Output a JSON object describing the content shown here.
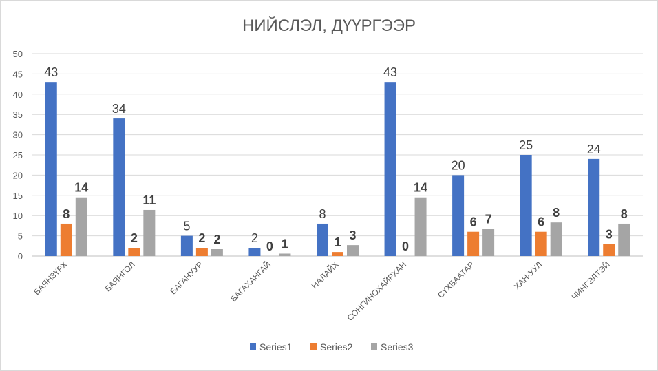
{
  "chart_data": {
    "type": "bar",
    "title": "НИЙСЛЭЛ, ДҮҮРГЭЭР",
    "xlabel": "",
    "ylabel": "",
    "ylim": [
      0,
      50
    ],
    "yticks": [
      0,
      5,
      10,
      15,
      20,
      25,
      30,
      35,
      40,
      45,
      50
    ],
    "grid": true,
    "legend": "bottom",
    "categories": [
      "БАЯНЗҮРХ",
      "БАЯНГОЛ",
      "БАГАНУУР",
      "БАГАХАНГАЙ",
      "НАЛАЙХ",
      "СОНГИНОХАЙРХАН",
      "СҮХБААТАР",
      "ХАН-УУЛ",
      "ЧИНГЭЛТЭЙ"
    ],
    "series": [
      {
        "name": "Series1",
        "color": "#4472c4",
        "values": [
          43,
          34,
          5,
          2,
          8,
          43,
          20,
          25,
          24
        ],
        "labels": [
          "43",
          "34",
          "5",
          "2",
          "8",
          "43",
          "20",
          "25",
          "24"
        ]
      },
      {
        "name": "Series2",
        "color": "#ed7d31",
        "values": [
          8,
          2,
          2,
          0,
          1,
          0,
          6,
          6,
          3
        ],
        "labels": [
          "8",
          "2",
          "2",
          "0",
          "1",
          "0",
          "6",
          "6",
          "3"
        ]
      },
      {
        "name": "Series3",
        "color": "#a5a5a5",
        "values": [
          14.5,
          11.4,
          1.7,
          0.6,
          2.7,
          14.5,
          6.7,
          8.3,
          8
        ],
        "labels": [
          "14",
          "11",
          "2",
          "1",
          "3",
          "14",
          "7",
          "8",
          "8"
        ]
      }
    ]
  }
}
